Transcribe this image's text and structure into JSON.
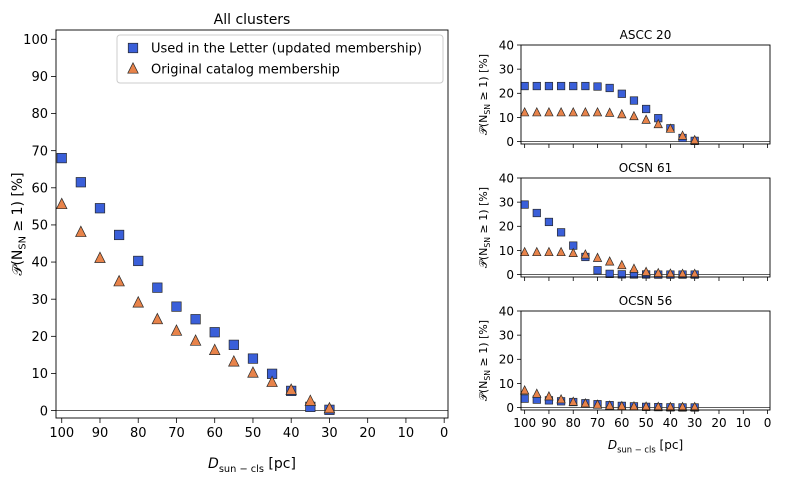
{
  "chart_data": [
    {
      "type": "scatter",
      "title": "All clusters",
      "xlabel_main": "D",
      "xlabel_sub": "sun − cls",
      "xlabel_unit": "[pc]",
      "ylabel_main": "𝒫(N",
      "ylabel_sub": "SN",
      "ylabel_rest": " ≥ 1) [%]",
      "xlim": [
        101.5,
        -1
      ],
      "ylim": [
        -2,
        102.5
      ],
      "xticks": [
        "100",
        "90",
        "80",
        "70",
        "60",
        "50",
        "40",
        "30",
        "20",
        "10",
        "0"
      ],
      "yticks": [
        "0",
        "10",
        "20",
        "30",
        "40",
        "50",
        "60",
        "70",
        "80",
        "90",
        "100"
      ],
      "legend_position": "top-right",
      "hline_y": 0,
      "x": [
        100,
        95,
        90,
        85,
        80,
        75,
        70,
        65,
        60,
        55,
        50,
        45,
        40,
        35,
        30
      ],
      "series": [
        {
          "name": "Used in the Letter (updated membership)",
          "marker": "square",
          "color": "#3a5fd9",
          "values": [
            68,
            61.5,
            54.5,
            47.3,
            40.3,
            33.1,
            28,
            24.6,
            21.1,
            17.7,
            14,
            9.9,
            5.3,
            1,
            0.2
          ]
        },
        {
          "name": "Original catalog membership",
          "marker": "triangle",
          "color": "#e8834a",
          "values": [
            55.5,
            48,
            41,
            34.7,
            29,
            24.5,
            21.4,
            18.7,
            16.2,
            13.1,
            10.1,
            7.6,
            5.5,
            2.5,
            0.5
          ]
        }
      ]
    },
    {
      "type": "scatter",
      "title": "ASCC 20",
      "ylabel_main": "𝒫(N",
      "ylabel_sub": "SN",
      "ylabel_rest": " ≥ 1) [%]",
      "xlim": [
        101.5,
        -1
      ],
      "ylim": [
        -1,
        40
      ],
      "yticks": [
        "0",
        "10",
        "20",
        "30",
        "40"
      ],
      "hline_y": 0,
      "x": [
        100,
        95,
        90,
        85,
        80,
        75,
        70,
        65,
        60,
        55,
        50,
        45,
        40,
        35,
        30
      ],
      "series": [
        {
          "marker": "square",
          "color": "#3a5fd9",
          "values": [
            23,
            23,
            23,
            23,
            23,
            23,
            22.8,
            22.2,
            19.8,
            17,
            13.5,
            9.7,
            5.5,
            1.5,
            0.3
          ]
        },
        {
          "marker": "triangle",
          "color": "#e8834a",
          "values": [
            12,
            12,
            12,
            12,
            12,
            12,
            12,
            11.8,
            11.2,
            10.4,
            8.9,
            7.1,
            5.2,
            2.3,
            0.5
          ]
        }
      ]
    },
    {
      "type": "scatter",
      "title": "OCSN 61",
      "ylabel_main": "𝒫(N",
      "ylabel_sub": "SN",
      "ylabel_rest": " ≥ 1) [%]",
      "xlim": [
        101.5,
        -1
      ],
      "ylim": [
        -1,
        40
      ],
      "yticks": [
        "0",
        "10",
        "20",
        "30",
        "40"
      ],
      "hline_y": 0,
      "x": [
        100,
        95,
        90,
        85,
        80,
        75,
        70,
        65,
        60,
        55,
        50,
        45,
        40,
        35,
        30
      ],
      "series": [
        {
          "marker": "square",
          "color": "#3a5fd9",
          "values": [
            29,
            25.5,
            21.8,
            17.5,
            12,
            7.3,
            1.8,
            0.3,
            0.1,
            0.05,
            0.05,
            0,
            0,
            0,
            0
          ]
        },
        {
          "marker": "triangle",
          "color": "#e8834a",
          "values": [
            9.2,
            9.2,
            9.2,
            9.2,
            8.8,
            8.2,
            6.8,
            5.3,
            3.8,
            2.3,
            1,
            0.5,
            0.3,
            0.2,
            0.2
          ]
        }
      ]
    },
    {
      "type": "scatter",
      "title": "OCSN 56",
      "xlabel_main": "D",
      "xlabel_sub": "sun − cls",
      "xlabel_unit": "[pc]",
      "ylabel_main": "𝒫(N",
      "ylabel_sub": "SN",
      "ylabel_rest": " ≥ 1) [%]",
      "xlim": [
        101.5,
        -1
      ],
      "ylim": [
        -1,
        40
      ],
      "xticks": [
        "100",
        "90",
        "80",
        "70",
        "60",
        "50",
        "40",
        "30",
        "20",
        "10",
        "0"
      ],
      "yticks": [
        "0",
        "10",
        "20",
        "30",
        "40"
      ],
      "hline_y": 0,
      "x": [
        100,
        95,
        90,
        85,
        80,
        75,
        70,
        65,
        60,
        55,
        50,
        45,
        40,
        35,
        30
      ],
      "series": [
        {
          "marker": "square",
          "color": "#3a5fd9",
          "values": [
            3.7,
            3.3,
            3,
            2.6,
            2.3,
            1.8,
            1.4,
            1,
            0.7,
            0.5,
            0.3,
            0.2,
            0.1,
            0.05,
            0.05
          ]
        },
        {
          "marker": "triangle",
          "color": "#e8834a",
          "values": [
            7,
            5.6,
            4.5,
            3.3,
            2.3,
            1.6,
            1.1,
            0.7,
            0.5,
            0.4,
            0.3,
            0.2,
            0.1,
            0.1,
            0.1
          ]
        }
      ]
    }
  ]
}
